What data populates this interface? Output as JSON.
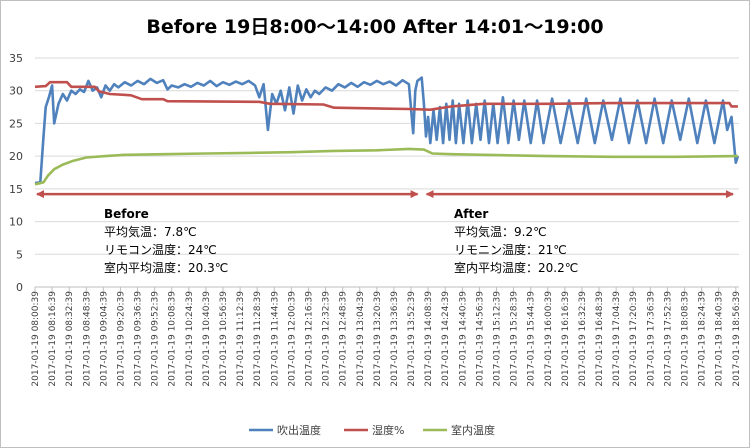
{
  "chart_data": {
    "type": "line",
    "title": "Before  19日8:00～14:00   After  14:01～19:00",
    "ylim": [
      0,
      35
    ],
    "yticks": [
      0,
      5,
      10,
      15,
      20,
      25,
      30,
      35
    ],
    "grid": "horizontal",
    "legend_position": "bottom",
    "x_tick_labels": [
      "2017-01-19 08:00:39",
      "2017-01-19 08:16:39",
      "2017-01-19 08:32:39",
      "2017-01-19 08:48:39",
      "2017-01-19 09:04:39",
      "2017-01-19 09:20:39",
      "2017-01-19 09:36:39",
      "2017-01-19 09:52:39",
      "2017-01-19 10:08:39",
      "2017-01-19 10:24:39",
      "2017-01-19 10:40:39",
      "2017-01-19 10:56:39",
      "2017-01-19 11:12:39",
      "2017-01-19 11:28:39",
      "2017-01-19 11:44:39",
      "2017-01-19 12:00:39",
      "2017-01-19 12:16:39",
      "2017-01-19 12:32:39",
      "2017-01-19 12:48:39",
      "2017-01-19 13:04:39",
      "2017-01-19 13:20:39",
      "2017-01-19 13:36:39",
      "2017-01-19 13:52:39",
      "2017-01-19 14:08:39",
      "2017-01-19 14:24:39",
      "2017-01-19 14:40:39",
      "2017-01-19 14:56:39",
      "2017-01-19 15:12:39",
      "2017-01-19 15:28:39",
      "2017-01-19 15:44:39",
      "2017-01-19 16:00:39",
      "2017-01-19 16:16:39",
      "2017-01-19 16:32:39",
      "2017-01-19 16:48:39",
      "2017-01-19 17:04:39",
      "2017-01-19 17:20:39",
      "2017-01-19 17:36:39",
      "2017-01-19 17:52:39",
      "2017-01-19 18:08:39",
      "2017-01-19 18:24:39",
      "2017-01-19 18:40:39",
      "2017-01-19 18:56:39"
    ],
    "x_minutes_start": "2017-01-19 08:00:39",
    "series": [
      {
        "name": "吹出温度",
        "color": "#4f81bd",
        "points": [
          [
            "2017-01-19 08:00:39",
            15.9
          ],
          [
            "2017-01-19 08:05:39",
            16.0
          ],
          [
            "2017-01-19 08:08:39",
            23.0
          ],
          [
            "2017-01-19 08:10:39",
            27.5
          ],
          [
            "2017-01-19 08:13:39",
            29.0
          ],
          [
            "2017-01-19 08:16:39",
            30.8
          ],
          [
            "2017-01-19 08:18:39",
            25.0
          ],
          [
            "2017-01-19 08:22:39",
            28.0
          ],
          [
            "2017-01-19 08:26:39",
            29.5
          ],
          [
            "2017-01-19 08:30:39",
            28.5
          ],
          [
            "2017-01-19 08:34:39",
            30.0
          ],
          [
            "2017-01-19 08:38:39",
            29.5
          ],
          [
            "2017-01-19 08:42:39",
            30.2
          ],
          [
            "2017-01-19 08:46:39",
            29.8
          ],
          [
            "2017-01-19 08:50:39",
            31.5
          ],
          [
            "2017-01-19 08:54:39",
            30.0
          ],
          [
            "2017-01-19 08:58:39",
            30.5
          ],
          [
            "2017-01-19 09:02:39",
            29.0
          ],
          [
            "2017-01-19 09:06:39",
            30.8
          ],
          [
            "2017-01-19 09:10:39",
            30.0
          ],
          [
            "2017-01-19 09:14:39",
            31.0
          ],
          [
            "2017-01-19 09:18:39",
            30.5
          ],
          [
            "2017-01-19 09:24:39",
            31.3
          ],
          [
            "2017-01-19 09:30:39",
            30.8
          ],
          [
            "2017-01-19 09:36:39",
            31.5
          ],
          [
            "2017-01-19 09:42:39",
            31.0
          ],
          [
            "2017-01-19 09:48:39",
            31.8
          ],
          [
            "2017-01-19 09:54:39",
            31.2
          ],
          [
            "2017-01-19 10:00:39",
            31.6
          ],
          [
            "2017-01-19 10:04:39",
            30.2
          ],
          [
            "2017-01-19 10:08:39",
            30.8
          ],
          [
            "2017-01-19 10:14:39",
            30.5
          ],
          [
            "2017-01-19 10:20:39",
            31.0
          ],
          [
            "2017-01-19 10:26:39",
            30.6
          ],
          [
            "2017-01-19 10:32:39",
            31.2
          ],
          [
            "2017-01-19 10:38:39",
            30.8
          ],
          [
            "2017-01-19 10:44:39",
            31.5
          ],
          [
            "2017-01-19 10:50:39",
            30.7
          ],
          [
            "2017-01-19 10:56:39",
            31.3
          ],
          [
            "2017-01-19 11:02:39",
            30.9
          ],
          [
            "2017-01-19 11:08:39",
            31.4
          ],
          [
            "2017-01-19 11:14:39",
            31.0
          ],
          [
            "2017-01-19 11:20:39",
            31.5
          ],
          [
            "2017-01-19 11:26:39",
            30.8
          ],
          [
            "2017-01-19 11:30:39",
            29.0
          ],
          [
            "2017-01-19 11:34:39",
            31.0
          ],
          [
            "2017-01-19 11:38:39",
            24.0
          ],
          [
            "2017-01-19 11:42:39",
            29.5
          ],
          [
            "2017-01-19 11:46:39",
            28.0
          ],
          [
            "2017-01-19 11:50:39",
            30.0
          ],
          [
            "2017-01-19 11:54:39",
            27.0
          ],
          [
            "2017-01-19 11:58:39",
            30.5
          ],
          [
            "2017-01-19 12:02:39",
            26.5
          ],
          [
            "2017-01-19 12:06:39",
            30.8
          ],
          [
            "2017-01-19 12:10:39",
            28.5
          ],
          [
            "2017-01-19 12:14:39",
            30.2
          ],
          [
            "2017-01-19 12:18:39",
            29.0
          ],
          [
            "2017-01-19 12:22:39",
            30.0
          ],
          [
            "2017-01-19 12:26:39",
            29.5
          ],
          [
            "2017-01-19 12:32:39",
            30.5
          ],
          [
            "2017-01-19 12:38:39",
            30.0
          ],
          [
            "2017-01-19 12:44:39",
            31.0
          ],
          [
            "2017-01-19 12:50:39",
            30.5
          ],
          [
            "2017-01-19 12:56:39",
            31.2
          ],
          [
            "2017-01-19 13:02:39",
            30.6
          ],
          [
            "2017-01-19 13:08:39",
            31.3
          ],
          [
            "2017-01-19 13:14:39",
            30.9
          ],
          [
            "2017-01-19 13:20:39",
            31.5
          ],
          [
            "2017-01-19 13:26:39",
            31.0
          ],
          [
            "2017-01-19 13:32:39",
            31.4
          ],
          [
            "2017-01-19 13:38:39",
            30.8
          ],
          [
            "2017-01-19 13:44:39",
            31.6
          ],
          [
            "2017-01-19 13:50:39",
            31.0
          ],
          [
            "2017-01-19 13:54:39",
            23.5
          ],
          [
            "2017-01-19 13:56:39",
            30.0
          ],
          [
            "2017-01-19 13:58:39",
            31.5
          ],
          [
            "2017-01-19 14:02:39",
            32.0
          ],
          [
            "2017-01-19 14:04:39",
            28.0
          ],
          [
            "2017-01-19 14:06:39",
            23.0
          ],
          [
            "2017-01-19 14:08:39",
            26.0
          ],
          [
            "2017-01-19 14:10:39",
            22.0
          ],
          [
            "2017-01-19 14:13:39",
            27.0
          ],
          [
            "2017-01-19 14:16:39",
            22.5
          ],
          [
            "2017-01-19 14:19:39",
            27.5
          ],
          [
            "2017-01-19 14:22:39",
            22.0
          ],
          [
            "2017-01-19 14:25:39",
            28.0
          ],
          [
            "2017-01-19 14:28:39",
            22.5
          ],
          [
            "2017-01-19 14:31:39",
            28.5
          ],
          [
            "2017-01-19 14:34:39",
            22.0
          ],
          [
            "2017-01-19 14:37:39",
            28.0
          ],
          [
            "2017-01-19 14:41:39",
            22.0
          ],
          [
            "2017-01-19 14:45:39",
            28.5
          ],
          [
            "2017-01-19 14:49:39",
            22.0
          ],
          [
            "2017-01-19 14:53:39",
            28.0
          ],
          [
            "2017-01-19 14:57:39",
            22.5
          ],
          [
            "2017-01-19 15:01:39",
            28.5
          ],
          [
            "2017-01-19 15:05:39",
            22.0
          ],
          [
            "2017-01-19 15:09:39",
            28.0
          ],
          [
            "2017-01-19 15:13:39",
            22.0
          ],
          [
            "2017-01-19 15:18:39",
            29.0
          ],
          [
            "2017-01-19 15:23:39",
            22.0
          ],
          [
            "2017-01-19 15:28:39",
            28.5
          ],
          [
            "2017-01-19 15:33:39",
            22.5
          ],
          [
            "2017-01-19 15:38:39",
            28.5
          ],
          [
            "2017-01-19 15:44:39",
            22.0
          ],
          [
            "2017-01-19 15:50:39",
            28.5
          ],
          [
            "2017-01-19 15:56:39",
            22.0
          ],
          [
            "2017-01-19 16:04:39",
            28.8
          ],
          [
            "2017-01-19 16:12:39",
            22.0
          ],
          [
            "2017-01-19 16:20:39",
            28.5
          ],
          [
            "2017-01-19 16:28:39",
            22.0
          ],
          [
            "2017-01-19 16:36:39",
            28.8
          ],
          [
            "2017-01-19 16:44:39",
            22.0
          ],
          [
            "2017-01-19 16:52:39",
            28.5
          ],
          [
            "2017-01-19 17:00:39",
            22.5
          ],
          [
            "2017-01-19 17:08:39",
            28.8
          ],
          [
            "2017-01-19 17:16:39",
            22.0
          ],
          [
            "2017-01-19 17:24:39",
            28.5
          ],
          [
            "2017-01-19 17:32:39",
            22.0
          ],
          [
            "2017-01-19 17:40:39",
            28.8
          ],
          [
            "2017-01-19 17:48:39",
            22.0
          ],
          [
            "2017-01-19 17:56:39",
            28.5
          ],
          [
            "2017-01-19 18:04:39",
            22.5
          ],
          [
            "2017-01-19 18:12:39",
            28.8
          ],
          [
            "2017-01-19 18:20:39",
            22.0
          ],
          [
            "2017-01-19 18:28:39",
            28.5
          ],
          [
            "2017-01-19 18:36:39",
            22.0
          ],
          [
            "2017-01-19 18:44:39",
            28.5
          ],
          [
            "2017-01-19 18:48:39",
            24.0
          ],
          [
            "2017-01-19 18:52:39",
            26.0
          ],
          [
            "2017-01-19 18:56:39",
            19.0
          ],
          [
            "2017-01-19 18:58:39",
            20.0
          ]
        ]
      },
      {
        "name": "湿度%",
        "color": "#c0504d",
        "points": [
          [
            "2017-01-19 08:00:39",
            30.6
          ],
          [
            "2017-01-19 08:10:39",
            30.7
          ],
          [
            "2017-01-19 08:14:39",
            31.3
          ],
          [
            "2017-01-19 08:30:39",
            31.3
          ],
          [
            "2017-01-19 08:34:39",
            30.6
          ],
          [
            "2017-01-19 08:56:39",
            30.6
          ],
          [
            "2017-01-19 09:00:39",
            29.9
          ],
          [
            "2017-01-19 09:10:39",
            29.5
          ],
          [
            "2017-01-19 09:30:39",
            29.3
          ],
          [
            "2017-01-19 09:40:39",
            28.7
          ],
          [
            "2017-01-19 10:00:39",
            28.7
          ],
          [
            "2017-01-19 10:04:39",
            28.4
          ],
          [
            "2017-01-19 11:30:39",
            28.3
          ],
          [
            "2017-01-19 11:40:39",
            28.0
          ],
          [
            "2017-01-19 12:30:39",
            27.9
          ],
          [
            "2017-01-19 12:40:39",
            27.4
          ],
          [
            "2017-01-19 13:50:39",
            27.2
          ],
          [
            "2017-01-19 14:10:39",
            27.1
          ],
          [
            "2017-01-19 14:30:39",
            27.6
          ],
          [
            "2017-01-19 15:00:39",
            28.0
          ],
          [
            "2017-01-19 16:00:39",
            28.0
          ],
          [
            "2017-01-19 17:00:39",
            28.1
          ],
          [
            "2017-01-19 18:00:39",
            28.1
          ],
          [
            "2017-01-19 18:50:39",
            28.1
          ],
          [
            "2017-01-19 18:52:39",
            27.6
          ],
          [
            "2017-01-19 18:58:39",
            27.6
          ]
        ]
      },
      {
        "name": "室内温度",
        "color": "#9bbb59",
        "points": [
          [
            "2017-01-19 08:00:39",
            15.7
          ],
          [
            "2017-01-19 08:08:39",
            16.0
          ],
          [
            "2017-01-19 08:12:39",
            17.0
          ],
          [
            "2017-01-19 08:18:39",
            18.0
          ],
          [
            "2017-01-19 08:26:39",
            18.7
          ],
          [
            "2017-01-19 08:36:39",
            19.3
          ],
          [
            "2017-01-19 08:48:39",
            19.8
          ],
          [
            "2017-01-19 09:06:39",
            20.0
          ],
          [
            "2017-01-19 09:24:39",
            20.2
          ],
          [
            "2017-01-19 10:00:39",
            20.3
          ],
          [
            "2017-01-19 10:40:39",
            20.4
          ],
          [
            "2017-01-19 11:20:39",
            20.5
          ],
          [
            "2017-01-19 12:00:39",
            20.6
          ],
          [
            "2017-01-19 12:40:39",
            20.8
          ],
          [
            "2017-01-19 13:20:39",
            20.9
          ],
          [
            "2017-01-19 13:50:39",
            21.1
          ],
          [
            "2017-01-19 14:04:39",
            21.0
          ],
          [
            "2017-01-19 14:12:39",
            20.4
          ],
          [
            "2017-01-19 14:30:39",
            20.3
          ],
          [
            "2017-01-19 15:00:39",
            20.2
          ],
          [
            "2017-01-19 16:00:39",
            20.0
          ],
          [
            "2017-01-19 17:00:39",
            19.9
          ],
          [
            "2017-01-19 18:00:39",
            19.9
          ],
          [
            "2017-01-19 18:58:39",
            20.0
          ]
        ]
      }
    ],
    "annotations": [
      {
        "group": "before",
        "lines": [
          "Before",
          "平均気温：7.8℃",
          "リモコン温度：24℃",
          "室内平均温度：20.3℃"
        ]
      },
      {
        "group": "after",
        "lines": [
          "After",
          "平均気温：9.2℃",
          "リモニン温度：21℃",
          "室内平均温度：20.2℃"
        ]
      }
    ],
    "range_arrows": [
      {
        "from": "2017-01-19 08:00:39",
        "to": "2017-01-19 14:00:39",
        "y": 14.2,
        "color": "#c0504d"
      },
      {
        "from": "2017-01-19 14:01:39",
        "to": "2017-01-19 18:58:39",
        "y": 14.2,
        "color": "#c0504d"
      }
    ]
  }
}
